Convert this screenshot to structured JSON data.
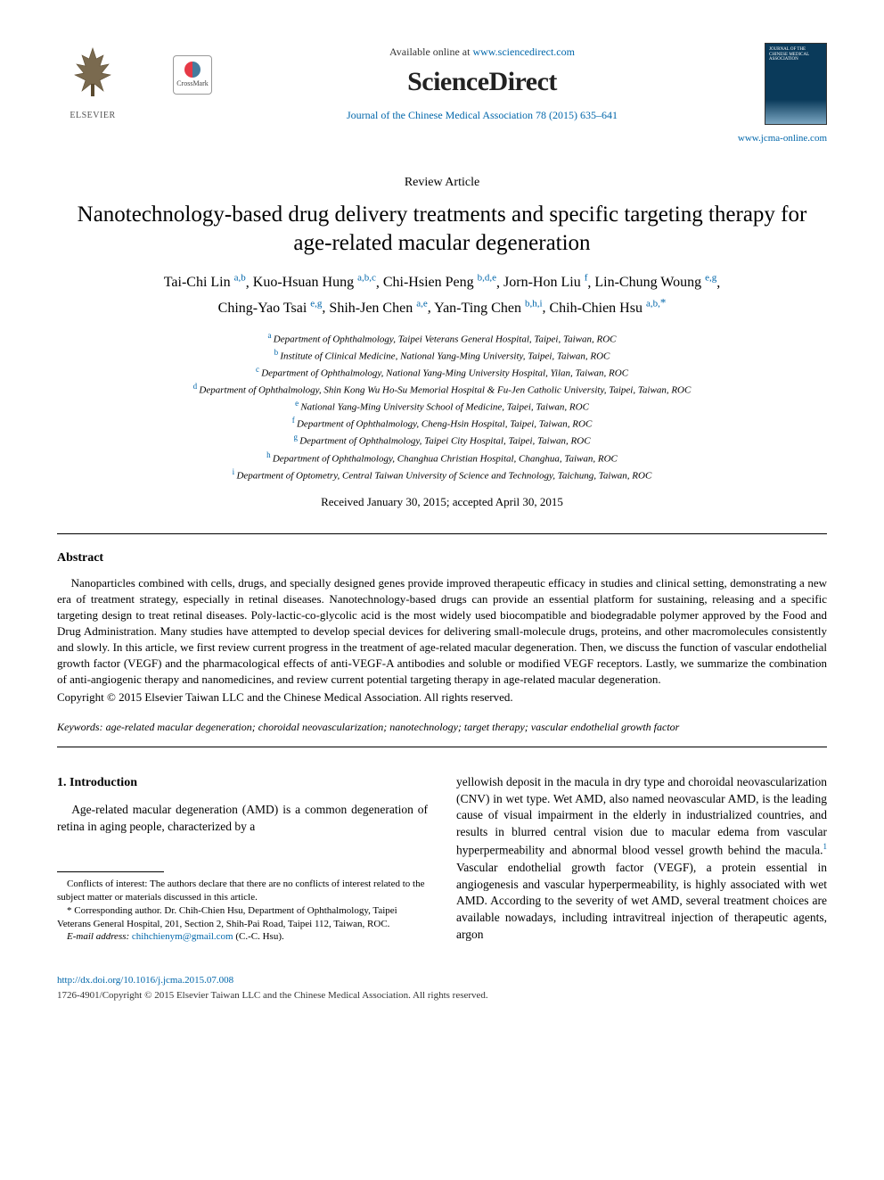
{
  "header": {
    "publisher_label": "ELSEVIER",
    "crossmark_label": "CrossMark",
    "available_prefix": "Available online at ",
    "available_url": "www.sciencedirect.com",
    "sciencedirect_brand": "ScienceDirect",
    "journal_ref": "Journal of the Chinese Medical Association 78 (2015) 635–641",
    "journal_cover_text": "JOURNAL OF THE CHINESE MEDICAL ASSOCIATION",
    "jcma_url": "www.jcma-online.com"
  },
  "article": {
    "type": "Review Article",
    "title": "Nanotechnology-based drug delivery treatments and specific targeting therapy for age-related macular degeneration",
    "authors": [
      {
        "name": "Tai-Chi Lin",
        "aff": "a,b"
      },
      {
        "name": "Kuo-Hsuan Hung",
        "aff": "a,b,c"
      },
      {
        "name": "Chi-Hsien Peng",
        "aff": "b,d,e"
      },
      {
        "name": "Jorn-Hon Liu",
        "aff": "f"
      },
      {
        "name": "Lin-Chung Woung",
        "aff": "e,g"
      },
      {
        "name": "Ching-Yao Tsai",
        "aff": "e,g"
      },
      {
        "name": "Shih-Jen Chen",
        "aff": "a,e"
      },
      {
        "name": "Yan-Ting Chen",
        "aff": "b,h,i"
      },
      {
        "name": "Chih-Chien Hsu",
        "aff": "a,b,",
        "corr": "*"
      }
    ],
    "affiliations": [
      {
        "sup": "a",
        "text": "Department of Ophthalmology, Taipei Veterans General Hospital, Taipei, Taiwan, ROC"
      },
      {
        "sup": "b",
        "text": "Institute of Clinical Medicine, National Yang-Ming University, Taipei, Taiwan, ROC"
      },
      {
        "sup": "c",
        "text": "Department of Ophthalmology, National Yang-Ming University Hospital, Yilan, Taiwan, ROC"
      },
      {
        "sup": "d",
        "text": "Department of Ophthalmology, Shin Kong Wu Ho-Su Memorial Hospital & Fu-Jen Catholic University, Taipei, Taiwan, ROC"
      },
      {
        "sup": "e",
        "text": "National Yang-Ming University School of Medicine, Taipei, Taiwan, ROC"
      },
      {
        "sup": "f",
        "text": "Department of Ophthalmology, Cheng-Hsin Hospital, Taipei, Taiwan, ROC"
      },
      {
        "sup": "g",
        "text": "Department of Ophthalmology, Taipei City Hospital, Taipei, Taiwan, ROC"
      },
      {
        "sup": "h",
        "text": "Department of Ophthalmology, Changhua Christian Hospital, Changhua, Taiwan, ROC"
      },
      {
        "sup": "i",
        "text": "Department of Optometry, Central Taiwan University of Science and Technology, Taichung, Taiwan, ROC"
      }
    ],
    "received": "Received January 30, 2015; accepted April 30, 2015"
  },
  "abstract": {
    "heading": "Abstract",
    "body": "Nanoparticles combined with cells, drugs, and specially designed genes provide improved therapeutic efficacy in studies and clinical setting, demonstrating a new era of treatment strategy, especially in retinal diseases. Nanotechnology-based drugs can provide an essential platform for sustaining, releasing and a specific targeting design to treat retinal diseases. Poly-lactic-co-glycolic acid is the most widely used biocompatible and biodegradable polymer approved by the Food and Drug Administration. Many studies have attempted to develop special devices for delivering small-molecule drugs, proteins, and other macromolecules consistently and slowly. In this article, we first review current progress in the treatment of age-related macular degeneration. Then, we discuss the function of vascular endothelial growth factor (VEGF) and the pharmacological effects of anti-VEGF-A antibodies and soluble or modified VEGF receptors. Lastly, we summarize the combination of anti-angiogenic therapy and nanomedicines, and review current potential targeting therapy in age-related macular degeneration.",
    "copyright": "Copyright © 2015 Elsevier Taiwan LLC and the Chinese Medical Association. All rights reserved."
  },
  "keywords": {
    "label": "Keywords:",
    "text": " age-related macular degeneration; choroidal neovascularization; nanotechnology; target therapy; vascular endothelial growth factor"
  },
  "body_text": {
    "section_heading": "1. Introduction",
    "col1_para": "Age-related macular degeneration (AMD) is a common degeneration of retina in aging people, characterized by a",
    "col2_para": "yellowish deposit in the macula in dry type and choroidal neovascularization (CNV) in wet type. Wet AMD, also named neovascular AMD, is the leading cause of visual impairment in the elderly in industrialized countries, and results in blurred central vision due to macular edema from vascular hyperpermeability and abnormal blood vessel growth behind the macula.",
    "col2_ref": "1",
    "col2_para2": " Vascular endothelial growth factor (VEGF), a protein essential in angiogenesis and vascular hyperpermeability, is highly associated with wet AMD. According to the severity of wet AMD, several treatment choices are available nowadays, including intravitreal injection of therapeutic agents, argon"
  },
  "footnotes": {
    "conflicts": "Conflicts of interest: The authors declare that there are no conflicts of interest related to the subject matter or materials discussed in this article.",
    "corresponding": "* Corresponding author. Dr. Chih-Chien Hsu, Department of Ophthalmology, Taipei Veterans General Hospital, 201, Section 2, Shih-Pai Road, Taipei 112, Taiwan, ROC.",
    "email_label": "E-mail address: ",
    "email": "chihchienym@gmail.com",
    "email_suffix": " (C.-C. Hsu)."
  },
  "bottom": {
    "doi": "http://dx.doi.org/10.1016/j.jcma.2015.07.008",
    "issn": "1726-4901/Copyright © 2015 Elsevier Taiwan LLC and the Chinese Medical Association. All rights reserved."
  },
  "colors": {
    "link": "#0066aa",
    "text": "#000000",
    "cover_top": "#0a3a5a",
    "cover_bottom": "#7aa6c2"
  },
  "typography": {
    "title_fontsize": 25,
    "author_fontsize": 16,
    "body_fontsize": 13.5,
    "abs_fontsize": 13,
    "aff_fontsize": 11
  }
}
